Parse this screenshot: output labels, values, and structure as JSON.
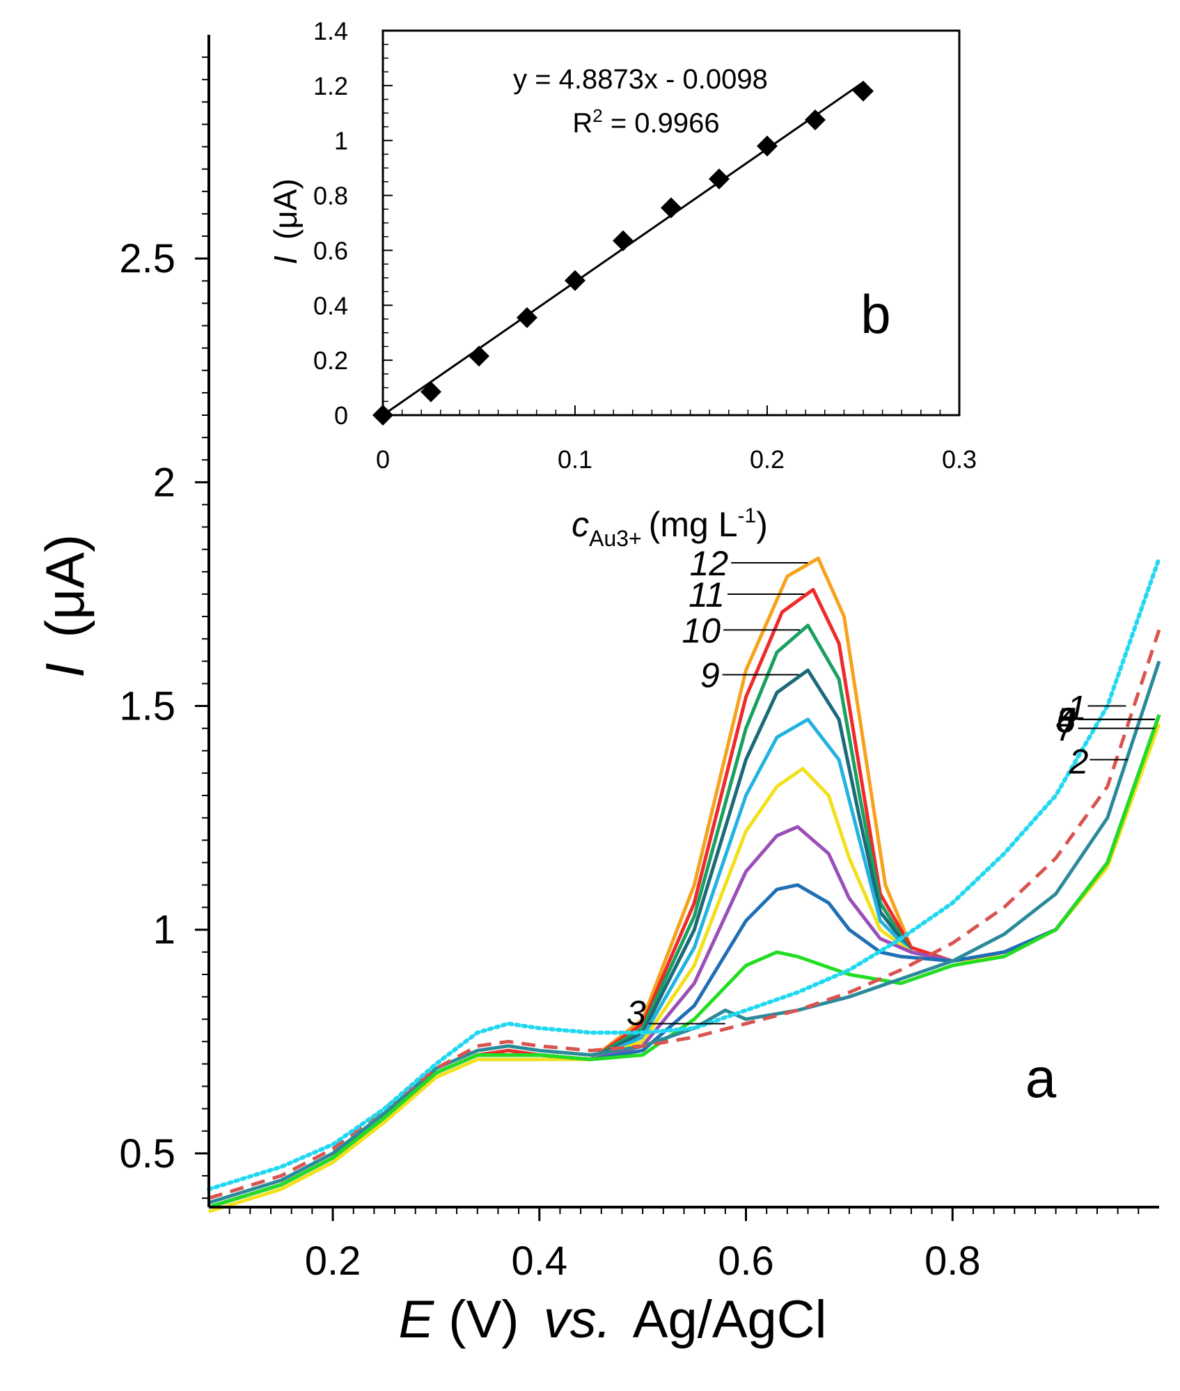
{
  "chart_data": [
    {
      "panel": "a",
      "type": "line",
      "panel_label": "a",
      "xlabel": {
        "italic": "E",
        "unit": "(V)",
        "vs": "vs.",
        "ref": "Ag/AgCl"
      },
      "ylabel": {
        "italic": "I",
        "unit": "(μA)"
      },
      "xlim": [
        0.08,
        1.0
      ],
      "ylim": [
        0.38,
        3.0
      ],
      "xticks": [
        0.2,
        0.4,
        0.6,
        0.8
      ],
      "xtick_labels": [
        "0.2",
        "0.4",
        "0.6",
        "0.8"
      ],
      "yticks": [
        0.5,
        1,
        1.5,
        2,
        2.5
      ],
      "ytick_labels": [
        "0.5",
        "1",
        "1.5",
        "2",
        "2.5"
      ],
      "series": [
        {
          "name": "1",
          "color": "#22d8f0",
          "dash": "dotted",
          "x": [
            0.08,
            0.15,
            0.2,
            0.25,
            0.3,
            0.34,
            0.37,
            0.4,
            0.45,
            0.5,
            0.55,
            0.6,
            0.65,
            0.7,
            0.75,
            0.8,
            0.85,
            0.9,
            0.95,
            1.0
          ],
          "y": [
            0.42,
            0.47,
            0.52,
            0.6,
            0.7,
            0.77,
            0.79,
            0.78,
            0.77,
            0.77,
            0.78,
            0.82,
            0.86,
            0.91,
            0.98,
            1.06,
            1.17,
            1.3,
            1.5,
            1.83
          ]
        },
        {
          "name": "2",
          "color": "#d9534f",
          "dash": "dashed",
          "x": [
            0.08,
            0.15,
            0.2,
            0.25,
            0.3,
            0.34,
            0.37,
            0.4,
            0.45,
            0.5,
            0.55,
            0.6,
            0.65,
            0.7,
            0.75,
            0.8,
            0.85,
            0.9,
            0.95,
            1.0
          ],
          "y": [
            0.4,
            0.45,
            0.51,
            0.6,
            0.69,
            0.74,
            0.75,
            0.74,
            0.73,
            0.74,
            0.76,
            0.79,
            0.82,
            0.86,
            0.91,
            0.97,
            1.05,
            1.16,
            1.32,
            1.67
          ]
        },
        {
          "name": "3",
          "color": "#2a8a9a",
          "dash": "solid",
          "x": [
            0.08,
            0.15,
            0.2,
            0.25,
            0.3,
            0.34,
            0.37,
            0.4,
            0.45,
            0.5,
            0.55,
            0.58,
            0.6,
            0.65,
            0.7,
            0.75,
            0.8,
            0.85,
            0.9,
            0.95,
            1.0
          ],
          "y": [
            0.39,
            0.44,
            0.5,
            0.59,
            0.69,
            0.73,
            0.74,
            0.73,
            0.72,
            0.74,
            0.78,
            0.82,
            0.8,
            0.82,
            0.85,
            0.89,
            0.93,
            0.99,
            1.08,
            1.25,
            1.6
          ]
        },
        {
          "name": "4",
          "color": "#22dd22",
          "dash": "solid",
          "x": [
            0.08,
            0.15,
            0.2,
            0.25,
            0.3,
            0.34,
            0.37,
            0.4,
            0.45,
            0.5,
            0.55,
            0.6,
            0.63,
            0.65,
            0.7,
            0.75,
            0.8,
            0.85,
            0.9,
            0.95,
            1.0
          ],
          "y": [
            0.38,
            0.43,
            0.49,
            0.58,
            0.68,
            0.72,
            0.72,
            0.72,
            0.71,
            0.72,
            0.8,
            0.92,
            0.95,
            0.94,
            0.9,
            0.88,
            0.92,
            0.94,
            1.0,
            1.15,
            1.48
          ]
        },
        {
          "name": "5",
          "color": "#1f6fb4",
          "dash": "solid",
          "x": [
            0.08,
            0.15,
            0.2,
            0.25,
            0.3,
            0.34,
            0.37,
            0.4,
            0.45,
            0.5,
            0.55,
            0.6,
            0.63,
            0.65,
            0.68,
            0.7,
            0.73,
            0.75,
            0.8,
            0.85,
            0.9,
            0.95,
            1.0
          ],
          "y": [
            0.38,
            0.43,
            0.49,
            0.58,
            0.68,
            0.72,
            0.72,
            0.72,
            0.71,
            0.73,
            0.83,
            1.02,
            1.09,
            1.1,
            1.06,
            1.0,
            0.95,
            0.94,
            0.93,
            0.95,
            1.0,
            1.15,
            1.48
          ]
        },
        {
          "name": "6",
          "color": "#9b4db8",
          "dash": "solid",
          "x": [
            0.08,
            0.15,
            0.2,
            0.25,
            0.3,
            0.34,
            0.37,
            0.4,
            0.45,
            0.5,
            0.55,
            0.6,
            0.63,
            0.65,
            0.68,
            0.7,
            0.73,
            0.76,
            0.8,
            0.85,
            0.9,
            0.95,
            1.0
          ],
          "y": [
            0.38,
            0.43,
            0.49,
            0.58,
            0.68,
            0.72,
            0.72,
            0.72,
            0.71,
            0.74,
            0.88,
            1.13,
            1.21,
            1.23,
            1.17,
            1.07,
            0.98,
            0.95,
            0.93,
            0.95,
            1.0,
            1.15,
            1.48
          ]
        },
        {
          "name": "7",
          "color": "#f2e01a",
          "dash": "solid",
          "x": [
            0.08,
            0.15,
            0.2,
            0.25,
            0.3,
            0.34,
            0.37,
            0.4,
            0.45,
            0.5,
            0.55,
            0.6,
            0.63,
            0.655,
            0.68,
            0.7,
            0.73,
            0.76,
            0.8,
            0.85,
            0.9,
            0.95,
            1.0
          ],
          "y": [
            0.37,
            0.42,
            0.48,
            0.57,
            0.67,
            0.71,
            0.71,
            0.71,
            0.71,
            0.75,
            0.92,
            1.22,
            1.32,
            1.36,
            1.3,
            1.16,
            1.0,
            0.95,
            0.93,
            0.94,
            1.0,
            1.14,
            1.46
          ]
        },
        {
          "name": "8",
          "color": "#22b2e0",
          "dash": "solid",
          "x": [
            0.08,
            0.15,
            0.2,
            0.25,
            0.3,
            0.34,
            0.37,
            0.4,
            0.45,
            0.5,
            0.55,
            0.6,
            0.63,
            0.66,
            0.69,
            0.71,
            0.73,
            0.76,
            0.8,
            0.85,
            0.9,
            0.95,
            1.0
          ],
          "y": [
            0.38,
            0.43,
            0.49,
            0.58,
            0.68,
            0.72,
            0.72,
            0.72,
            0.71,
            0.76,
            0.96,
            1.3,
            1.43,
            1.47,
            1.38,
            1.2,
            1.02,
            0.95,
            0.93,
            0.95,
            1.0,
            1.15,
            1.48
          ]
        },
        {
          "name": "9",
          "color": "#1a6a7a",
          "dash": "solid",
          "x": [
            0.08,
            0.15,
            0.2,
            0.25,
            0.3,
            0.34,
            0.37,
            0.4,
            0.45,
            0.5,
            0.55,
            0.6,
            0.63,
            0.66,
            0.69,
            0.71,
            0.73,
            0.76,
            0.8,
            0.85,
            0.9,
            0.95,
            1.0
          ],
          "y": [
            0.38,
            0.43,
            0.49,
            0.58,
            0.68,
            0.72,
            0.72,
            0.72,
            0.71,
            0.77,
            1.0,
            1.38,
            1.53,
            1.58,
            1.47,
            1.25,
            1.04,
            0.95,
            0.93,
            0.95,
            1.0,
            1.15,
            1.48
          ]
        },
        {
          "name": "10",
          "color": "#1aa060",
          "dash": "solid",
          "x": [
            0.08,
            0.15,
            0.2,
            0.25,
            0.3,
            0.34,
            0.37,
            0.4,
            0.45,
            0.5,
            0.55,
            0.6,
            0.63,
            0.66,
            0.69,
            0.71,
            0.73,
            0.76,
            0.8,
            0.85,
            0.9,
            0.95,
            1.0
          ],
          "y": [
            0.38,
            0.43,
            0.49,
            0.58,
            0.68,
            0.72,
            0.72,
            0.72,
            0.71,
            0.78,
            1.03,
            1.45,
            1.62,
            1.68,
            1.56,
            1.3,
            1.06,
            0.95,
            0.93,
            0.95,
            1.0,
            1.15,
            1.48
          ]
        },
        {
          "name": "11",
          "color": "#ee2a2a",
          "dash": "solid",
          "x": [
            0.08,
            0.15,
            0.2,
            0.25,
            0.3,
            0.34,
            0.37,
            0.4,
            0.45,
            0.5,
            0.55,
            0.6,
            0.635,
            0.665,
            0.69,
            0.71,
            0.73,
            0.76,
            0.8,
            0.85,
            0.9,
            0.95,
            1.0
          ],
          "y": [
            0.38,
            0.43,
            0.49,
            0.58,
            0.68,
            0.72,
            0.73,
            0.72,
            0.71,
            0.79,
            1.06,
            1.52,
            1.71,
            1.76,
            1.64,
            1.36,
            1.08,
            0.96,
            0.93,
            0.95,
            1.0,
            1.15,
            1.48
          ]
        },
        {
          "name": "12",
          "color": "#f7a21b",
          "dash": "solid",
          "x": [
            0.08,
            0.15,
            0.2,
            0.25,
            0.3,
            0.34,
            0.37,
            0.4,
            0.45,
            0.5,
            0.55,
            0.6,
            0.64,
            0.67,
            0.695,
            0.715,
            0.735,
            0.76,
            0.8,
            0.85,
            0.9,
            0.95,
            1.0
          ],
          "y": [
            0.38,
            0.43,
            0.49,
            0.58,
            0.68,
            0.72,
            0.73,
            0.72,
            0.71,
            0.8,
            1.1,
            1.58,
            1.79,
            1.83,
            1.7,
            1.4,
            1.1,
            0.96,
            0.93,
            0.95,
            1.0,
            1.15,
            1.48
          ]
        }
      ]
    },
    {
      "panel": "b",
      "type": "scatter",
      "panel_label": "b",
      "xlabel": {
        "italic": "c",
        "sub": "Au3+",
        "unit": "(mg L",
        "sup": "-1",
        "close": ")"
      },
      "ylabel": {
        "italic": "I",
        "unit": "(μA)"
      },
      "xlim": [
        0,
        0.3
      ],
      "ylim": [
        0,
        1.4
      ],
      "xticks": [
        0,
        0.1,
        0.2,
        0.3
      ],
      "xtick_labels": [
        "0",
        "0.1",
        "0.2",
        "0.3"
      ],
      "yticks": [
        0,
        0.2,
        0.4,
        0.6,
        0.8,
        1,
        1.2,
        1.4
      ],
      "ytick_labels": [
        "0",
        "0.2",
        "0.4",
        "0.6",
        "0.8",
        "1",
        "1.2",
        "1.4"
      ],
      "points": {
        "x": [
          0,
          0.025,
          0.05,
          0.075,
          0.1,
          0.125,
          0.15,
          0.175,
          0.2,
          0.225,
          0.25
        ],
        "y": [
          0.0,
          0.085,
          0.215,
          0.355,
          0.49,
          0.635,
          0.755,
          0.86,
          0.98,
          1.075,
          1.18
        ]
      },
      "fit": {
        "slope": 4.8873,
        "intercept": -0.0098,
        "x_range": [
          0,
          0.25
        ]
      },
      "equation": "y = 4.8873x - 0.0098",
      "r2_text": {
        "prefix": "R",
        "sup": "2",
        "rest": " = 0.9966"
      }
    }
  ]
}
